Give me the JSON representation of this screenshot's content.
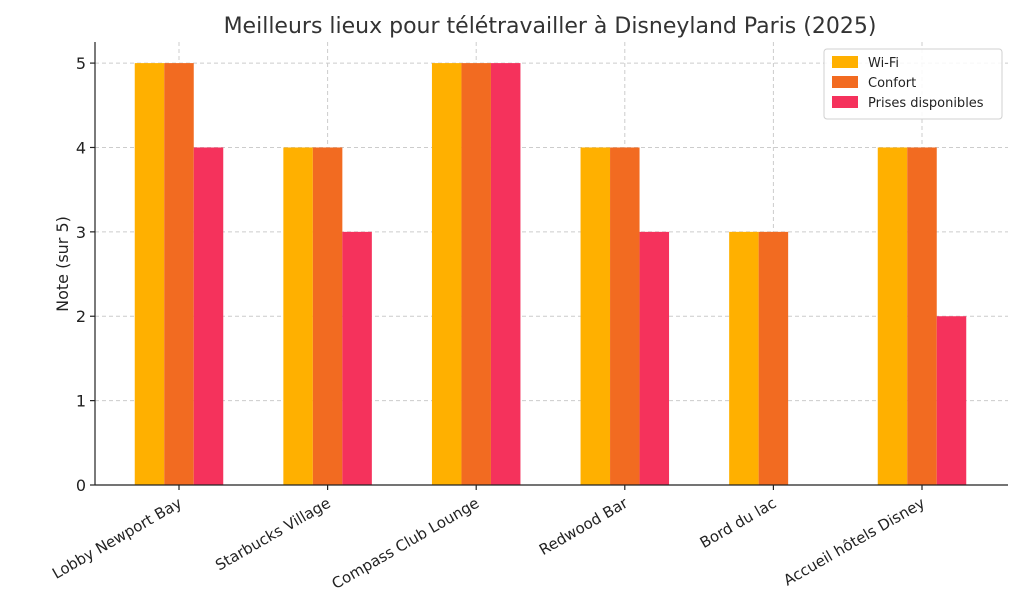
{
  "chart_data": {
    "type": "bar",
    "title": "Meilleurs lieux pour télétravailler à Disneyland Paris (2025)",
    "xlabel": "",
    "ylabel": "Note (sur 5)",
    "ylim": [
      0,
      5.25
    ],
    "yticks": [
      "0",
      "1",
      "2",
      "3",
      "4",
      "5"
    ],
    "grid": true,
    "legend_position": "top-right",
    "categories": [
      "Lobby Newport Bay",
      "Starbucks Village",
      "Compass Club Lounge",
      "Redwood Bar",
      "Bord du lac",
      "Accueil hôtels Disney"
    ],
    "series": [
      {
        "name": "Wi-Fi",
        "color": "#FFB000",
        "values": [
          5,
          4,
          5,
          4,
          3,
          4
        ]
      },
      {
        "name": "Confort",
        "color": "#F26B21",
        "values": [
          5,
          4,
          5,
          4,
          3,
          4
        ]
      },
      {
        "name": "Prises disponibles",
        "color": "#F5325C",
        "values": [
          4,
          3,
          5,
          3,
          0,
          2
        ]
      }
    ]
  }
}
